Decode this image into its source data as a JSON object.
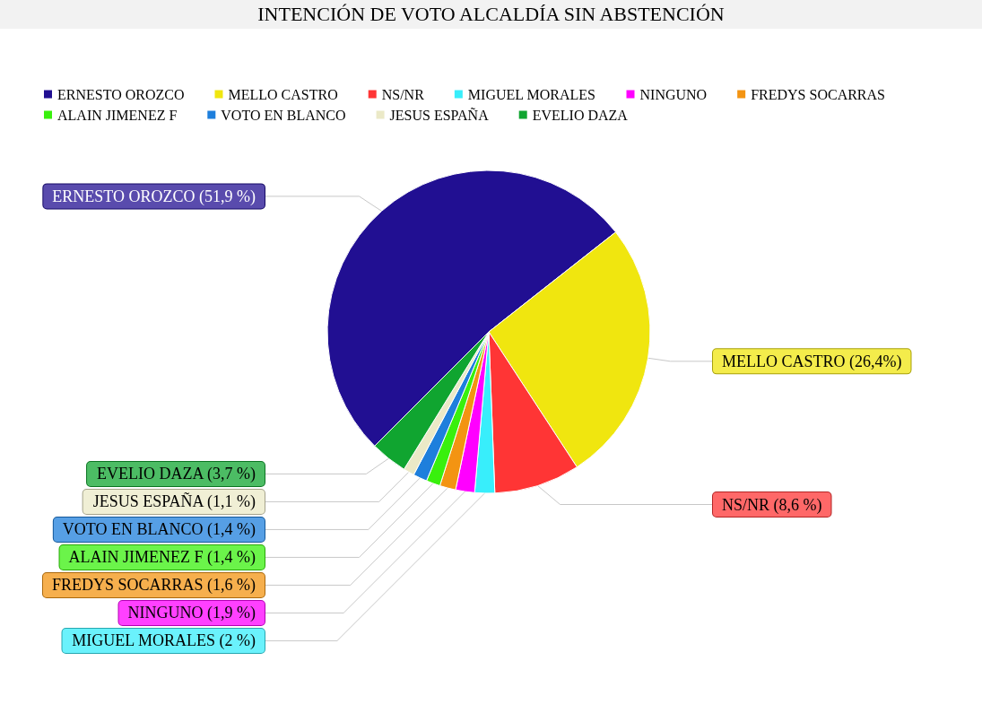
{
  "chart_data": {
    "type": "pie",
    "title": "INTENCIÓN DE VOTO ALCALDÍA SIN ABSTENCIÓN",
    "categories": [
      "ERNESTO OROZCO",
      "MELLO CASTRO",
      "NS/NR",
      "MIGUEL MORALES",
      "NINGUNO",
      "FREDYS SOCARRAS",
      "ALAIN JIMENEZ F",
      "VOTO EN BLANCO",
      "JESUS ESPAÑA",
      "EVELIO DAZA"
    ],
    "values": [
      51.9,
      26.4,
      8.6,
      2,
      1.9,
      1.6,
      1.4,
      1.4,
      1.1,
      3.7
    ],
    "value_labels": [
      "(51,9 %)",
      "(26,4%)",
      "(8,6 %)",
      "(2 %)",
      "(1,9 %)",
      "(1,6 %)",
      "(1,4 %)",
      "(1,4 %)",
      "(1,1 %)",
      "(3,7 %)"
    ],
    "colors": [
      "#210f92",
      "#f0e60f",
      "#ff3535",
      "#38eefb",
      "#ff00ff",
      "#f39412",
      "#39f00d",
      "#1e7fdc",
      "#ebe9c7",
      "#10a530"
    ],
    "legend": "top"
  }
}
